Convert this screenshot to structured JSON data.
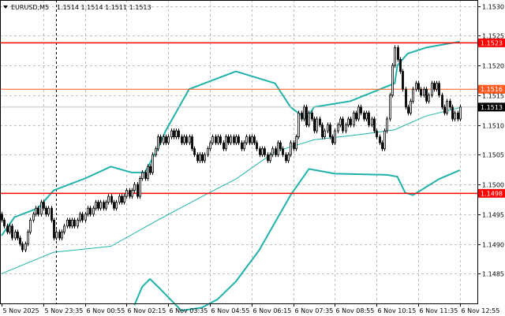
{
  "header": {
    "menu_icon": "triangle-down-icon",
    "symbol": "EURUSD,M5",
    "ohlc": "1.1514 1.1514 1.1511 1.1513"
  },
  "colors": {
    "background": "#ffffff",
    "grid": "#c0c0c0",
    "bull_body": "#ffffff",
    "bear_body": "#000000",
    "bands": "#20b2aa",
    "level_red": "#ff0000",
    "level_orange": "#ff5a1f",
    "current_price": "#000000"
  },
  "chart_data": {
    "type": "candlestick",
    "symbol": "EURUSD",
    "timeframe": "M5",
    "ylim": [
      1.148,
      1.1531
    ],
    "grid": true,
    "y_ticks": [
      "1.1530",
      "1.1525",
      "1.1520",
      "1.1515",
      "1.1510",
      "1.1505",
      "1.1500",
      "1.1495",
      "1.1490",
      "1.1485"
    ],
    "x_ticks": [
      "5 Nov 2025",
      "5 Nov 23:35",
      "6 Nov 00:55",
      "6 Nov 02:15",
      "6 Nov 03:35",
      "6 Nov 04:55",
      "6 Nov 06:15",
      "6 Nov 07:35",
      "6 Nov 08:55",
      "6 Nov 10:15",
      "6 Nov 11:35",
      "6 Nov 12:55"
    ],
    "day_separator": "6 Nov 00:00",
    "first_open": 1.1495,
    "closes": [
      1.1494,
      1.1493,
      1.1492,
      1.1493,
      1.1491,
      1.1492,
      1.1491,
      1.149,
      1.1489,
      1.149,
      1.1492,
      1.1494,
      1.1495,
      1.1496,
      1.1495,
      1.1497,
      1.1496,
      1.1495,
      1.1496,
      1.1494,
      1.1491,
      1.1492,
      1.1491,
      1.1492,
      1.1493,
      1.1494,
      1.1493,
      1.1494,
      1.1493,
      1.1494,
      1.1495,
      1.1494,
      1.1495,
      1.1496,
      1.1495,
      1.1496,
      1.1497,
      1.1496,
      1.1497,
      1.1496,
      1.1497,
      1.1498,
      1.1497,
      1.1496,
      1.1497,
      1.1498,
      1.1497,
      1.1498,
      1.1499,
      1.1498,
      1.1499,
      1.15,
      1.1498,
      1.1501,
      1.1502,
      1.1501,
      1.1503,
      1.1502,
      1.1505,
      1.1506,
      1.1508,
      1.1507,
      1.1508,
      1.1507,
      1.1508,
      1.1509,
      1.1508,
      1.1509,
      1.1508,
      1.1507,
      1.1508,
      1.1507,
      1.1508,
      1.1506,
      1.1505,
      1.1504,
      1.1505,
      1.1504,
      1.1505,
      1.1506,
      1.1507,
      1.1508,
      1.1507,
      1.1508,
      1.1507,
      1.1506,
      1.1508,
      1.1507,
      1.1508,
      1.1507,
      1.1508,
      1.1507,
      1.1506,
      1.1507,
      1.1508,
      1.1507,
      1.1508,
      1.1507,
      1.1506,
      1.1505,
      1.1506,
      1.1505,
      1.1504,
      1.1505,
      1.1506,
      1.1505,
      1.1507,
      1.1506,
      1.1505,
      1.1504,
      1.1505,
      1.1507,
      1.1506,
      1.1508,
      1.1512,
      1.1511,
      1.1513,
      1.151,
      1.1512,
      1.1511,
      1.1509,
      1.1511,
      1.151,
      1.1508,
      1.1509,
      1.151,
      1.1508,
      1.1507,
      1.1509,
      1.151,
      1.1511,
      1.1509,
      1.151,
      1.1511,
      1.151,
      1.1512,
      1.1511,
      1.1513,
      1.1512,
      1.1511,
      1.1512,
      1.151,
      1.1511,
      1.1509,
      1.1508,
      1.1507,
      1.1506,
      1.1509,
      1.1511,
      1.1515,
      1.152,
      1.1523,
      1.1521,
      1.1519,
      1.1516,
      1.1513,
      1.1512,
      1.1514,
      1.1516,
      1.1517,
      1.1516,
      1.1515,
      1.1516,
      1.1514,
      1.1515,
      1.1517,
      1.1516,
      1.1517,
      1.1515,
      1.1513,
      1.1512,
      1.1514,
      1.1513,
      1.1511,
      1.1512,
      1.1511,
      1.1513
    ],
    "indicators": {
      "upper_band": [
        [
          "22:15",
          1.14914
        ],
        [
          "22:40",
          1.14945
        ],
        [
          "23:25",
          1.1496
        ],
        [
          "23:55",
          1.1499
        ],
        [
          "00:55",
          1.1501
        ],
        [
          "01:45",
          1.1503
        ],
        [
          "02:25",
          1.1502
        ],
        [
          "02:50",
          1.1502
        ],
        [
          "03:15",
          1.1506
        ],
        [
          "03:30",
          1.1509
        ],
        [
          "04:15",
          1.1516
        ],
        [
          "05:45",
          1.1519
        ],
        [
          "07:00",
          1.1517
        ],
        [
          "07:30",
          1.1513
        ],
        [
          "08:00",
          1.1511
        ],
        [
          "08:15",
          1.1513
        ],
        [
          "09:25",
          1.1514
        ],
        [
          "10:50",
          1.1517
        ],
        [
          "10:55",
          1.152
        ],
        [
          "11:15",
          1.1522
        ],
        [
          "11:50",
          1.1523
        ],
        [
          "12:55",
          1.1524
        ]
      ],
      "middle_line": [
        [
          "22:15",
          1.1485
        ],
        [
          "23:55",
          1.14886
        ],
        [
          "01:45",
          1.14896
        ],
        [
          "03:15",
          1.1494
        ],
        [
          "04:45",
          1.14982
        ],
        [
          "05:45",
          1.15009
        ],
        [
          "07:00",
          1.15055
        ],
        [
          "08:15",
          1.15075
        ],
        [
          "09:45",
          1.15084
        ],
        [
          "10:50",
          1.15092
        ],
        [
          "11:50",
          1.15115
        ],
        [
          "12:55",
          1.15129
        ]
      ],
      "lower_band": [
        [
          "02:30",
          1.14797
        ],
        [
          "02:45",
          1.14828
        ],
        [
          "03:00",
          1.14841
        ],
        [
          "03:20",
          1.14824
        ],
        [
          "04:00",
          1.14788
        ],
        [
          "04:40",
          1.14793
        ],
        [
          "05:10",
          1.14807
        ],
        [
          "05:45",
          1.14837
        ],
        [
          "06:30",
          1.1489
        ],
        [
          "07:00",
          1.14936
        ],
        [
          "07:30",
          1.14982
        ],
        [
          "08:05",
          1.15026
        ],
        [
          "08:55",
          1.15018
        ],
        [
          "10:35",
          1.15016
        ],
        [
          "10:55",
          1.15013
        ],
        [
          "11:10",
          1.14986
        ],
        [
          "11:25",
          1.14982
        ],
        [
          "12:15",
          1.15009
        ],
        [
          "12:55",
          1.15024
        ]
      ]
    },
    "levels": [
      {
        "label": "1.1523",
        "price": 1.15238,
        "color": "#ff0000",
        "width": 1.5
      },
      {
        "label": "1.1516",
        "price": 1.1516,
        "color": "#ff5a1f",
        "width": 1
      },
      {
        "label": "1.1513",
        "price": 1.1513,
        "color": "#c0c0c0",
        "label_bg": "#000000",
        "width": 1
      },
      {
        "label": "1.1498",
        "price": 1.14985,
        "color": "#ff0000",
        "width": 1.5
      }
    ]
  }
}
